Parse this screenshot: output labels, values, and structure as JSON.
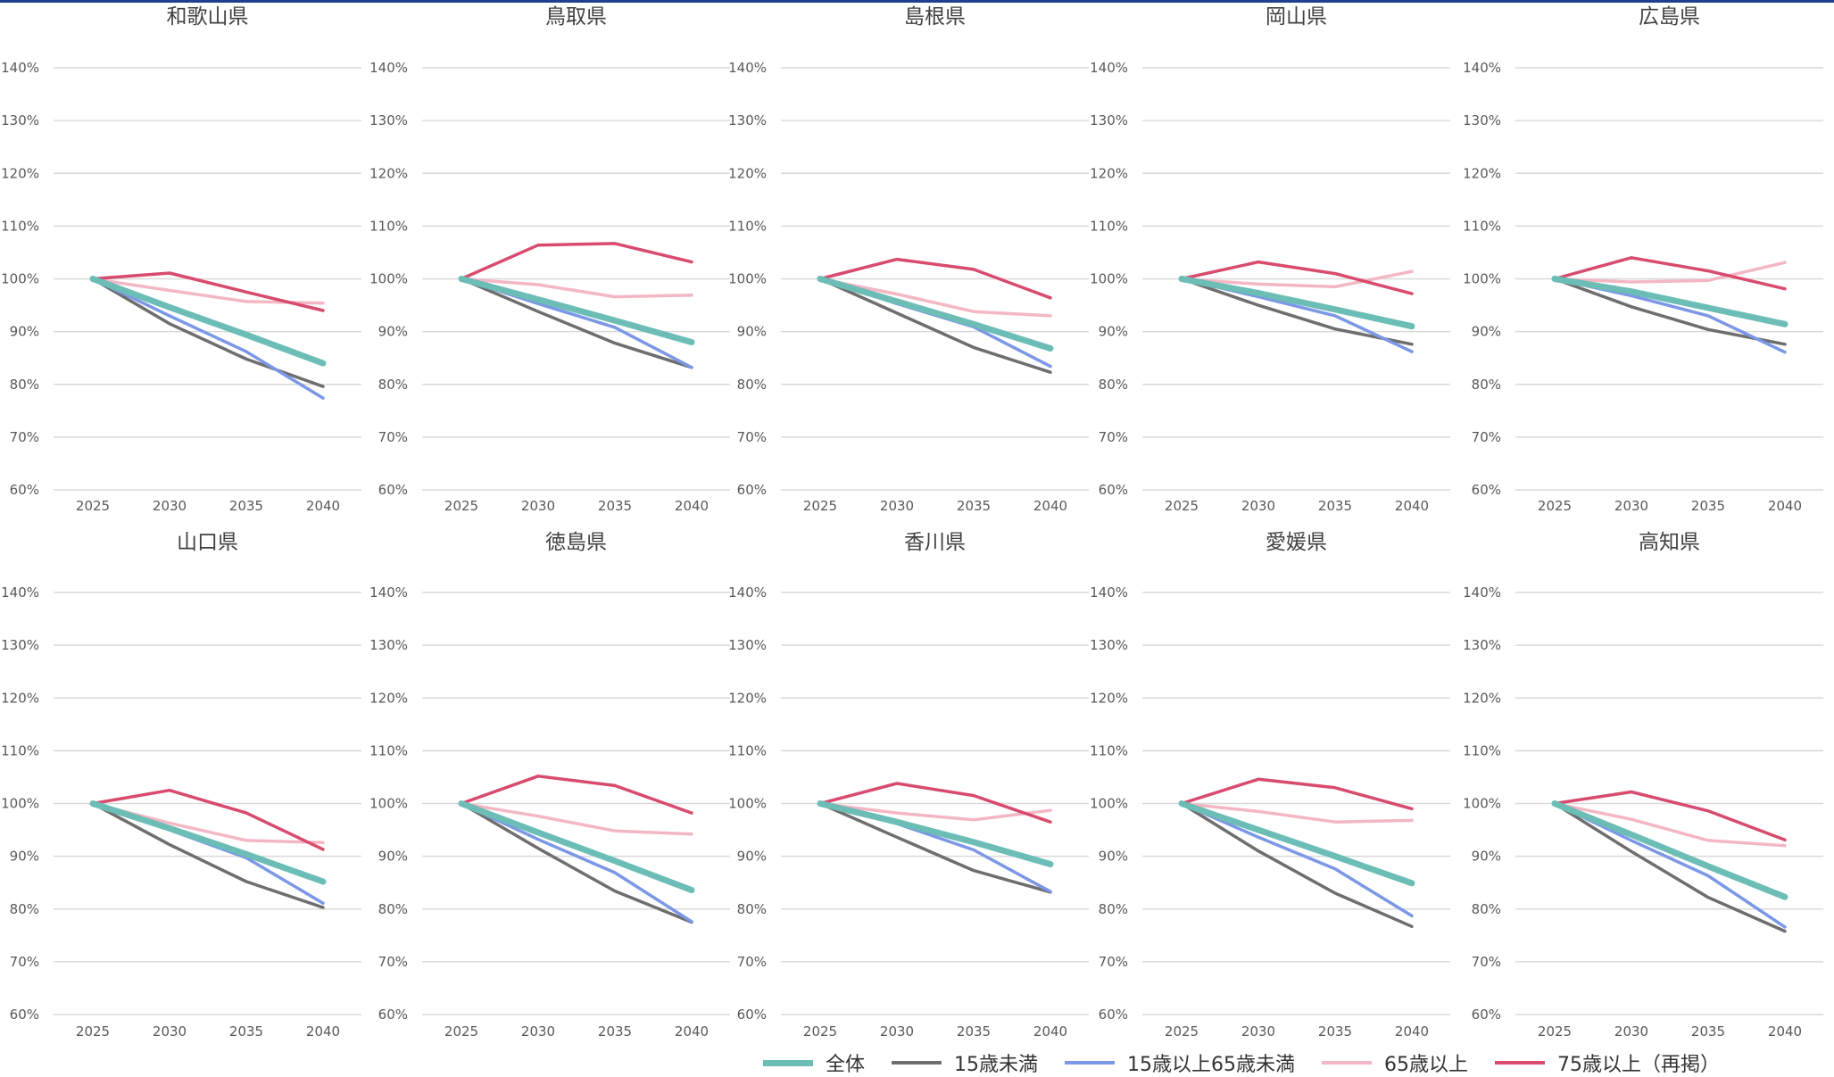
{
  "colors": {
    "total": "#6bbdb6",
    "under15": "#6e6e6e",
    "age15_64": "#7b97e6",
    "age65plus": "#f3b7c4",
    "age75plus": "#d84b6e",
    "grid": "#d9d9d9",
    "tick_text": "#595959",
    "title_text": "#404040",
    "top_rule": "#1f3f8f"
  },
  "legend": [
    {
      "key": "total",
      "label": "全体"
    },
    {
      "key": "under15",
      "label": "15歳未満"
    },
    {
      "key": "age15_64",
      "label": "15歳以上65歳未満"
    },
    {
      "key": "age65plus",
      "label": "65歳以上"
    },
    {
      "key": "age75plus",
      "label": "75歳以上（再掲）"
    }
  ],
  "chart_data": [
    {
      "type": "line",
      "title": "和歌山県",
      "x": [
        "2025",
        "2030",
        "2035",
        "2040"
      ],
      "ylim": [
        60,
        140
      ],
      "yticks": [
        "60%",
        "70%",
        "80%",
        "90%",
        "100%",
        "110%",
        "120%",
        "130%",
        "140%"
      ],
      "grid": true,
      "series": [
        {
          "key": "total",
          "name": "全体",
          "values": [
            100,
            94.6,
            89.4,
            84.0
          ]
        },
        {
          "key": "under15",
          "name": "15歳未満",
          "values": [
            100,
            91.5,
            84.8,
            79.6
          ]
        },
        {
          "key": "age15_64",
          "name": "15歳以上65歳未満",
          "values": [
            100,
            93.0,
            86.2,
            77.4
          ]
        },
        {
          "key": "age65plus",
          "name": "65歳以上",
          "values": [
            100,
            97.8,
            95.7,
            95.4
          ]
        },
        {
          "key": "age75plus",
          "name": "75歳以上（再掲）",
          "values": [
            100,
            101.1,
            97.5,
            94.0
          ]
        }
      ]
    },
    {
      "type": "line",
      "title": "鳥取県",
      "x": [
        "2025",
        "2030",
        "2035",
        "2040"
      ],
      "ylim": [
        60,
        140
      ],
      "yticks": [
        "60%",
        "70%",
        "80%",
        "90%",
        "100%",
        "110%",
        "120%",
        "130%",
        "140%"
      ],
      "grid": true,
      "series": [
        {
          "key": "total",
          "name": "全体",
          "values": [
            100,
            96.1,
            92.1,
            88.0
          ]
        },
        {
          "key": "under15",
          "name": "15歳未満",
          "values": [
            100,
            93.8,
            87.8,
            83.2
          ]
        },
        {
          "key": "age15_64",
          "name": "15歳以上65歳未満",
          "values": [
            100,
            95.3,
            90.8,
            83.2
          ]
        },
        {
          "key": "age65plus",
          "name": "65歳以上",
          "values": [
            100,
            98.9,
            96.6,
            96.9
          ]
        },
        {
          "key": "age75plus",
          "name": "75歳以上（再掲）",
          "values": [
            100,
            106.4,
            106.7,
            103.2
          ]
        }
      ]
    },
    {
      "type": "line",
      "title": "島根県",
      "x": [
        "2025",
        "2030",
        "2035",
        "2040"
      ],
      "ylim": [
        60,
        140
      ],
      "yticks": [
        "60%",
        "70%",
        "80%",
        "90%",
        "100%",
        "110%",
        "120%",
        "130%",
        "140%"
      ],
      "grid": true,
      "series": [
        {
          "key": "total",
          "name": "全体",
          "values": [
            100,
            95.7,
            91.4,
            86.8
          ]
        },
        {
          "key": "under15",
          "name": "15歳未満",
          "values": [
            100,
            93.5,
            87.0,
            82.3
          ]
        },
        {
          "key": "age15_64",
          "name": "15歳以上65歳未満",
          "values": [
            100,
            95.3,
            90.9,
            83.4
          ]
        },
        {
          "key": "age65plus",
          "name": "65歳以上",
          "values": [
            100,
            97.1,
            93.8,
            93.0
          ]
        },
        {
          "key": "age75plus",
          "name": "75歳以上（再掲）",
          "values": [
            100,
            103.7,
            101.8,
            96.4
          ]
        }
      ]
    },
    {
      "type": "line",
      "title": "岡山県",
      "x": [
        "2025",
        "2030",
        "2035",
        "2040"
      ],
      "ylim": [
        60,
        140
      ],
      "yticks": [
        "60%",
        "70%",
        "80%",
        "90%",
        "100%",
        "110%",
        "120%",
        "130%",
        "140%"
      ],
      "grid": true,
      "series": [
        {
          "key": "total",
          "name": "全体",
          "values": [
            100,
            97.3,
            94.2,
            91.0
          ]
        },
        {
          "key": "under15",
          "name": "15歳未満",
          "values": [
            100,
            95.0,
            90.5,
            87.6
          ]
        },
        {
          "key": "age15_64",
          "name": "15歳以上65歳未満",
          "values": [
            100,
            96.6,
            93.0,
            86.2
          ]
        },
        {
          "key": "age65plus",
          "name": "65歳以上",
          "values": [
            100,
            99.0,
            98.5,
            101.4
          ]
        },
        {
          "key": "age75plus",
          "name": "75歳以上（再掲）",
          "values": [
            100,
            103.2,
            101.0,
            97.2
          ]
        }
      ]
    },
    {
      "type": "line",
      "title": "広島県",
      "x": [
        "2025",
        "2030",
        "2035",
        "2040"
      ],
      "ylim": [
        60,
        140
      ],
      "yticks": [
        "60%",
        "70%",
        "80%",
        "90%",
        "100%",
        "110%",
        "120%",
        "130%",
        "140%"
      ],
      "grid": true,
      "series": [
        {
          "key": "total",
          "name": "全体",
          "values": [
            100,
            97.6,
            94.5,
            91.4
          ]
        },
        {
          "key": "under15",
          "name": "15歳未満",
          "values": [
            100,
            94.7,
            90.4,
            87.6
          ]
        },
        {
          "key": "age15_64",
          "name": "15歳以上65歳未満",
          "values": [
            100,
            96.8,
            93.0,
            86.1
          ]
        },
        {
          "key": "age65plus",
          "name": "65歳以上",
          "values": [
            100,
            99.4,
            99.7,
            103.1
          ]
        },
        {
          "key": "age75plus",
          "name": "75歳以上（再掲）",
          "values": [
            100,
            104.0,
            101.5,
            98.1
          ]
        }
      ]
    },
    {
      "type": "line",
      "title": "山口県",
      "x": [
        "2025",
        "2030",
        "2035",
        "2040"
      ],
      "ylim": [
        60,
        140
      ],
      "yticks": [
        "60%",
        "70%",
        "80%",
        "90%",
        "100%",
        "110%",
        "120%",
        "130%",
        "140%"
      ],
      "grid": true,
      "series": [
        {
          "key": "total",
          "name": "全体",
          "values": [
            100,
            95.3,
            90.4,
            85.2
          ]
        },
        {
          "key": "under15",
          "name": "15歳未満",
          "values": [
            100,
            92.2,
            85.2,
            80.3
          ]
        },
        {
          "key": "age15_64",
          "name": "15歳以上65歳未満",
          "values": [
            100,
            95.0,
            89.7,
            81.1
          ]
        },
        {
          "key": "age65plus",
          "name": "65歳以上",
          "values": [
            100,
            96.3,
            93.0,
            92.6
          ]
        },
        {
          "key": "age75plus",
          "name": "75歳以上（再掲）",
          "values": [
            100,
            102.5,
            98.2,
            91.3
          ]
        }
      ]
    },
    {
      "type": "line",
      "title": "徳島県",
      "x": [
        "2025",
        "2030",
        "2035",
        "2040"
      ],
      "ylim": [
        60,
        140
      ],
      "yticks": [
        "60%",
        "70%",
        "80%",
        "90%",
        "100%",
        "110%",
        "120%",
        "130%",
        "140%"
      ],
      "grid": true,
      "series": [
        {
          "key": "total",
          "name": "全体",
          "values": [
            100,
            94.5,
            89.1,
            83.6
          ]
        },
        {
          "key": "under15",
          "name": "15歳未満",
          "values": [
            100,
            91.5,
            83.4,
            77.5
          ]
        },
        {
          "key": "age15_64",
          "name": "15歳以上65歳未満",
          "values": [
            100,
            93.2,
            86.9,
            77.6
          ]
        },
        {
          "key": "age65plus",
          "name": "65歳以上",
          "values": [
            100,
            97.6,
            94.8,
            94.2
          ]
        },
        {
          "key": "age75plus",
          "name": "75歳以上（再掲）",
          "values": [
            100,
            105.2,
            103.4,
            98.2
          ]
        }
      ]
    },
    {
      "type": "line",
      "title": "香川県",
      "x": [
        "2025",
        "2030",
        "2035",
        "2040"
      ],
      "ylim": [
        60,
        140
      ],
      "yticks": [
        "60%",
        "70%",
        "80%",
        "90%",
        "100%",
        "110%",
        "120%",
        "130%",
        "140%"
      ],
      "grid": true,
      "series": [
        {
          "key": "total",
          "name": "全体",
          "values": [
            100,
            96.5,
            92.7,
            88.5
          ]
        },
        {
          "key": "under15",
          "name": "15歳未満",
          "values": [
            100,
            93.6,
            87.3,
            83.2
          ]
        },
        {
          "key": "age15_64",
          "name": "15歳以上65歳未満",
          "values": [
            100,
            96.2,
            91.2,
            83.3
          ]
        },
        {
          "key": "age65plus",
          "name": "65歳以上",
          "values": [
            100,
            98.2,
            96.9,
            98.7
          ]
        },
        {
          "key": "age75plus",
          "name": "75歳以上（再掲）",
          "values": [
            100,
            103.8,
            101.5,
            96.5
          ]
        }
      ]
    },
    {
      "type": "line",
      "title": "愛媛県",
      "x": [
        "2025",
        "2030",
        "2035",
        "2040"
      ],
      "ylim": [
        60,
        140
      ],
      "yticks": [
        "60%",
        "70%",
        "80%",
        "90%",
        "100%",
        "110%",
        "120%",
        "130%",
        "140%"
      ],
      "grid": true,
      "series": [
        {
          "key": "total",
          "name": "全体",
          "values": [
            100,
            95.0,
            90.0,
            84.9
          ]
        },
        {
          "key": "under15",
          "name": "15歳未満",
          "values": [
            100,
            91.0,
            83.0,
            76.7
          ]
        },
        {
          "key": "age15_64",
          "name": "15歳以上65歳未満",
          "values": [
            100,
            93.6,
            87.6,
            78.7
          ]
        },
        {
          "key": "age65plus",
          "name": "65歳以上",
          "values": [
            100,
            98.5,
            96.5,
            96.8
          ]
        },
        {
          "key": "age75plus",
          "name": "75歳以上（再掲）",
          "values": [
            100,
            104.6,
            103.0,
            99.0
          ]
        }
      ]
    },
    {
      "type": "line",
      "title": "高知県",
      "x": [
        "2025",
        "2030",
        "2035",
        "2040"
      ],
      "ylim": [
        60,
        140
      ],
      "yticks": [
        "60%",
        "70%",
        "80%",
        "90%",
        "100%",
        "110%",
        "120%",
        "130%",
        "140%"
      ],
      "grid": true,
      "series": [
        {
          "key": "total",
          "name": "全体",
          "values": [
            100,
            94.1,
            88.1,
            82.3
          ]
        },
        {
          "key": "under15",
          "name": "15歳未満",
          "values": [
            100,
            90.9,
            82.2,
            75.8
          ]
        },
        {
          "key": "age15_64",
          "name": "15歳以上65歳未満",
          "values": [
            100,
            93.0,
            86.3,
            76.6
          ]
        },
        {
          "key": "age65plus",
          "name": "65歳以上",
          "values": [
            100,
            97.0,
            93.0,
            92.0
          ]
        },
        {
          "key": "age75plus",
          "name": "75歳以上（再掲）",
          "values": [
            100,
            102.2,
            98.6,
            93.1
          ]
        }
      ]
    }
  ]
}
